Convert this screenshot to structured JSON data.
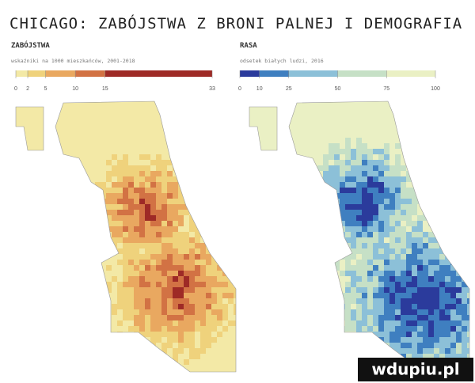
{
  "title": "CHICAGO: ZABÓJSTWA Z BRONI PALNEJ I DEMOGRAFIA",
  "legends": [
    {
      "heading": "ZABÓJSTWA",
      "subtitle": "wskaźniki na 1000 mieszkańców, 2001-2018",
      "range": [
        0,
        33
      ],
      "ticks": [
        0,
        2,
        5,
        10,
        15,
        33
      ],
      "colors": [
        "#f3e9a6",
        "#efd27c",
        "#e9a860",
        "#d27244",
        "#9e2a26"
      ]
    },
    {
      "heading": "RASA",
      "subtitle": "odsetek białych ludzi, 2016",
      "range": [
        0,
        100
      ],
      "ticks": [
        0,
        10,
        25,
        50,
        75,
        100
      ],
      "colors": [
        "#2b3b9c",
        "#3f7fc0",
        "#8cc0d8",
        "#c6e0c6",
        "#eaf0c4"
      ]
    }
  ],
  "watermark": "wdupiu.pl"
}
